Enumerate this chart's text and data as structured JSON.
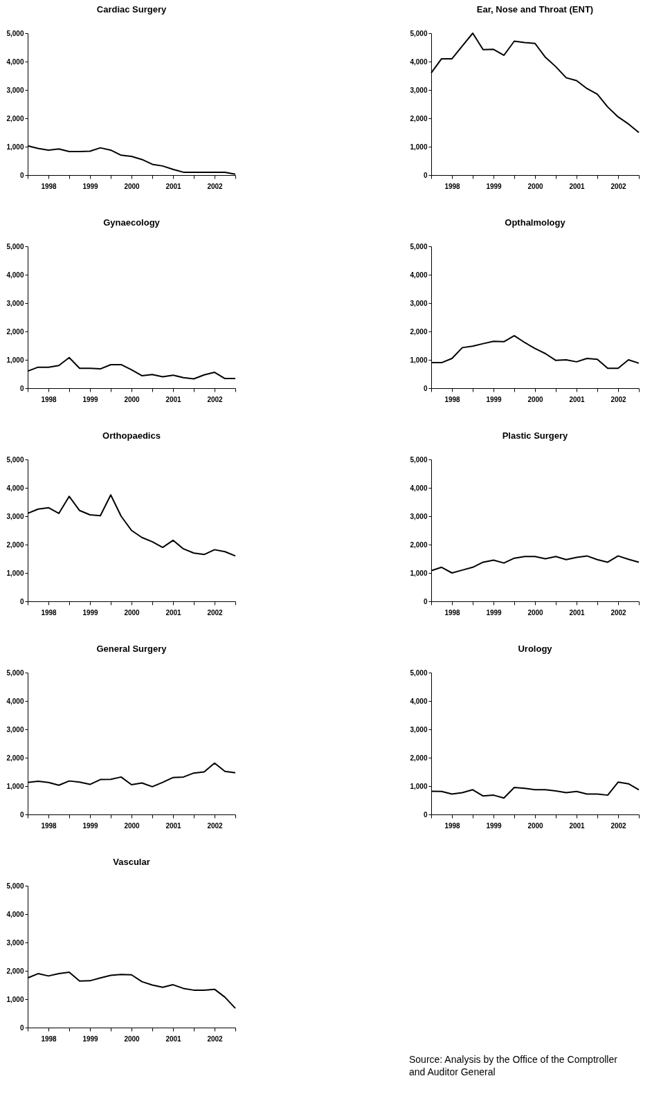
{
  "chart_data": [
    {
      "type": "line",
      "title": "Cardiac Surgery",
      "x": [
        1998,
        1998.25,
        1998.5,
        1998.75,
        1999,
        1999.25,
        1999.5,
        1999.75,
        2000,
        2000.25,
        2000.5,
        2000.75,
        2001,
        2001.25,
        2001.5,
        2001.75,
        2002,
        2002.25,
        2002.5,
        2002.75,
        2003
      ],
      "values": [
        1030,
        940,
        880,
        920,
        830,
        830,
        840,
        960,
        880,
        700,
        660,
        550,
        380,
        320,
        200,
        100,
        100,
        100,
        100,
        100,
        30
      ],
      "color": "#000000",
      "xlim": [
        1998,
        2003
      ],
      "xticks": [
        {
          "value": 1998,
          "label": null
        },
        {
          "value": 1998.5,
          "label": "1998"
        },
        {
          "value": 1999,
          "label": null
        },
        {
          "value": 1999.5,
          "label": "1999"
        },
        {
          "value": 2000,
          "label": null
        },
        {
          "value": 2000.5,
          "label": "2000"
        },
        {
          "value": 2001,
          "label": null
        },
        {
          "value": 2001.5,
          "label": "2001"
        },
        {
          "value": 2002,
          "label": null
        },
        {
          "value": 2002.5,
          "label": "2002"
        },
        {
          "value": 2003,
          "label": null
        }
      ],
      "ylim": [
        0,
        5000
      ],
      "yticks": [
        0,
        {
          "value": 1000,
          "label": "1,000"
        },
        {
          "value": 2000,
          "label": "2,000"
        },
        {
          "value": 3000,
          "label": "3,000"
        },
        {
          "value": 4000,
          "label": "4,000"
        },
        {
          "value": 5000,
          "label": "5,000"
        }
      ],
      "grid": false,
      "marker": "none",
      "line_style": "solid"
    },
    {
      "type": "line",
      "title": "Ear, Nose and Throat (ENT)",
      "x": [
        1998,
        1998.25,
        1998.5,
        1998.75,
        1999,
        1999.25,
        1999.5,
        1999.75,
        2000,
        2000.25,
        2000.5,
        2000.75,
        2001,
        2001.25,
        2001.5,
        2001.75,
        2002,
        2002.25,
        2002.5,
        2002.75,
        2003
      ],
      "values": [
        3600,
        4100,
        4100,
        4550,
        5000,
        4420,
        4430,
        4220,
        4720,
        4670,
        4640,
        4150,
        3820,
        3430,
        3330,
        3050,
        2850,
        2400,
        2050,
        1800,
        1500
      ],
      "color": "#000000",
      "xlim": [
        1998,
        2003
      ],
      "xticks": [
        {
          "value": 1998,
          "label": null
        },
        {
          "value": 1998.5,
          "label": "1998"
        },
        {
          "value": 1999,
          "label": null
        },
        {
          "value": 1999.5,
          "label": "1999"
        },
        {
          "value": 2000,
          "label": null
        },
        {
          "value": 2000.5,
          "label": "2000"
        },
        {
          "value": 2001,
          "label": null
        },
        {
          "value": 2001.5,
          "label": "2001"
        },
        {
          "value": 2002,
          "label": null
        },
        {
          "value": 2002.5,
          "label": "2002"
        },
        {
          "value": 2003,
          "label": null
        }
      ],
      "ylim": [
        0,
        5000
      ],
      "yticks": [
        0,
        {
          "value": 1000,
          "label": "1,000"
        },
        {
          "value": 2000,
          "label": "2,000"
        },
        {
          "value": 3000,
          "label": "3,000"
        },
        {
          "value": 4000,
          "label": "4,000"
        },
        {
          "value": 5000,
          "label": "5,000"
        }
      ],
      "grid": false,
      "marker": "none",
      "line_style": "solid"
    },
    {
      "type": "line",
      "title": "Gynaecology",
      "x": [
        1998,
        1998.25,
        1998.5,
        1998.75,
        1999,
        1999.25,
        1999.5,
        1999.75,
        2000,
        2000.25,
        2000.5,
        2000.75,
        2001,
        2001.25,
        2001.5,
        2001.75,
        2002,
        2002.25,
        2002.5,
        2002.75,
        2003
      ],
      "values": [
        600,
        740,
        740,
        800,
        1080,
        700,
        700,
        680,
        830,
        830,
        650,
        440,
        480,
        400,
        460,
        370,
        330,
        470,
        560,
        340,
        340
      ],
      "color": "#000000",
      "xlim": [
        1998,
        2003
      ],
      "xticks": [
        {
          "value": 1998,
          "label": null
        },
        {
          "value": 1998.5,
          "label": "1998"
        },
        {
          "value": 1999,
          "label": null
        },
        {
          "value": 1999.5,
          "label": "1999"
        },
        {
          "value": 2000,
          "label": null
        },
        {
          "value": 2000.5,
          "label": "2000"
        },
        {
          "value": 2001,
          "label": null
        },
        {
          "value": 2001.5,
          "label": "2001"
        },
        {
          "value": 2002,
          "label": null
        },
        {
          "value": 2002.5,
          "label": "2002"
        },
        {
          "value": 2003,
          "label": null
        }
      ],
      "ylim": [
        0,
        5000
      ],
      "yticks": [
        0,
        {
          "value": 1000,
          "label": "1,000"
        },
        {
          "value": 2000,
          "label": "2,000"
        },
        {
          "value": 3000,
          "label": "3,000"
        },
        {
          "value": 4000,
          "label": "4,000"
        },
        {
          "value": 5000,
          "label": "5,000"
        }
      ],
      "grid": false,
      "marker": "none",
      "line_style": "solid"
    },
    {
      "type": "line",
      "title": "Opthalmology",
      "x": [
        1998,
        1998.25,
        1998.5,
        1998.75,
        1999,
        1999.25,
        1999.5,
        1999.75,
        2000,
        2000.25,
        2000.5,
        2000.75,
        2001,
        2001.25,
        2001.5,
        2001.75,
        2002,
        2002.25,
        2002.5,
        2002.75,
        2003
      ],
      "values": [
        900,
        900,
        1050,
        1430,
        1480,
        1570,
        1650,
        1640,
        1850,
        1610,
        1400,
        1220,
        980,
        1000,
        930,
        1050,
        1020,
        700,
        700,
        1000,
        880
      ],
      "color": "#000000",
      "xlim": [
        1998,
        2003
      ],
      "xticks": [
        {
          "value": 1998,
          "label": null
        },
        {
          "value": 1998.5,
          "label": "1998"
        },
        {
          "value": 1999,
          "label": null
        },
        {
          "value": 1999.5,
          "label": "1999"
        },
        {
          "value": 2000,
          "label": null
        },
        {
          "value": 2000.5,
          "label": "2000"
        },
        {
          "value": 2001,
          "label": null
        },
        {
          "value": 2001.5,
          "label": "2001"
        },
        {
          "value": 2002,
          "label": null
        },
        {
          "value": 2002.5,
          "label": "2002"
        },
        {
          "value": 2003,
          "label": null
        }
      ],
      "ylim": [
        0,
        5000
      ],
      "yticks": [
        0,
        {
          "value": 1000,
          "label": "1,000"
        },
        {
          "value": 2000,
          "label": "2,000"
        },
        {
          "value": 3000,
          "label": "3,000"
        },
        {
          "value": 4000,
          "label": "4,000"
        },
        {
          "value": 5000,
          "label": "5,000"
        }
      ],
      "grid": false,
      "marker": "none",
      "line_style": "solid"
    },
    {
      "type": "line",
      "title": "Orthopaedics",
      "x": [
        1998,
        1998.25,
        1998.5,
        1998.75,
        1999,
        1999.25,
        1999.5,
        1999.75,
        2000,
        2000.25,
        2000.5,
        2000.75,
        2001,
        2001.25,
        2001.5,
        2001.75,
        2002,
        2002.25,
        2002.5,
        2002.75,
        2003
      ],
      "values": [
        3100,
        3250,
        3300,
        3100,
        3700,
        3200,
        3050,
        3020,
        3750,
        3000,
        2500,
        2250,
        2100,
        1900,
        2150,
        1850,
        1700,
        1650,
        1820,
        1750,
        1600
      ],
      "color": "#000000",
      "xlim": [
        1998,
        2003
      ],
      "xticks": [
        {
          "value": 1998,
          "label": null
        },
        {
          "value": 1998.5,
          "label": "1998"
        },
        {
          "value": 1999,
          "label": null
        },
        {
          "value": 1999.5,
          "label": "1999"
        },
        {
          "value": 2000,
          "label": null
        },
        {
          "value": 2000.5,
          "label": "2000"
        },
        {
          "value": 2001,
          "label": null
        },
        {
          "value": 2001.5,
          "label": "2001"
        },
        {
          "value": 2002,
          "label": null
        },
        {
          "value": 2002.5,
          "label": "2002"
        },
        {
          "value": 2003,
          "label": null
        }
      ],
      "ylim": [
        0,
        5000
      ],
      "yticks": [
        0,
        {
          "value": 1000,
          "label": "1,000"
        },
        {
          "value": 2000,
          "label": "2,000"
        },
        {
          "value": 3000,
          "label": "3,000"
        },
        {
          "value": 4000,
          "label": "4,000"
        },
        {
          "value": 5000,
          "label": "5,000"
        }
      ],
      "grid": false,
      "marker": "none",
      "line_style": "solid"
    },
    {
      "type": "line",
      "title": "Plastic Surgery",
      "x": [
        1998,
        1998.25,
        1998.5,
        1998.75,
        1999,
        1999.25,
        1999.5,
        1999.75,
        2000,
        2000.25,
        2000.5,
        2000.75,
        2001,
        2001.25,
        2001.5,
        2001.75,
        2002,
        2002.25,
        2002.5,
        2002.75,
        2003
      ],
      "values": [
        1080,
        1200,
        1000,
        1100,
        1200,
        1380,
        1450,
        1350,
        1520,
        1580,
        1580,
        1500,
        1580,
        1470,
        1550,
        1600,
        1470,
        1380,
        1600,
        1480,
        1380
      ],
      "color": "#000000",
      "xlim": [
        1998,
        2003
      ],
      "xticks": [
        {
          "value": 1998,
          "label": null
        },
        {
          "value": 1998.5,
          "label": "1998"
        },
        {
          "value": 1999,
          "label": null
        },
        {
          "value": 1999.5,
          "label": "1999"
        },
        {
          "value": 2000,
          "label": null
        },
        {
          "value": 2000.5,
          "label": "2000"
        },
        {
          "value": 2001,
          "label": null
        },
        {
          "value": 2001.5,
          "label": "2001"
        },
        {
          "value": 2002,
          "label": null
        },
        {
          "value": 2002.5,
          "label": "2002"
        },
        {
          "value": 2003,
          "label": null
        }
      ],
      "ylim": [
        0,
        5000
      ],
      "yticks": [
        0,
        {
          "value": 1000,
          "label": "1,000"
        },
        {
          "value": 2000,
          "label": "2,000"
        },
        {
          "value": 3000,
          "label": "3,000"
        },
        {
          "value": 4000,
          "label": "4,000"
        },
        {
          "value": 5000,
          "label": "5,000"
        }
      ],
      "grid": false,
      "marker": "none",
      "line_style": "solid"
    },
    {
      "type": "line",
      "title": "General Surgery",
      "x": [
        1998,
        1998.25,
        1998.5,
        1998.75,
        1999,
        1999.25,
        1999.5,
        1999.75,
        2000,
        2000.25,
        2000.5,
        2000.75,
        2001,
        2001.25,
        2001.5,
        2001.75,
        2002,
        2002.25,
        2002.5,
        2002.75,
        2003
      ],
      "values": [
        1130,
        1170,
        1130,
        1030,
        1180,
        1140,
        1060,
        1230,
        1240,
        1320,
        1050,
        1110,
        980,
        1130,
        1300,
        1320,
        1460,
        1500,
        1810,
        1520,
        1470
      ],
      "color": "#000000",
      "xlim": [
        1998,
        2003
      ],
      "xticks": [
        {
          "value": 1998,
          "label": null
        },
        {
          "value": 1998.5,
          "label": "1998"
        },
        {
          "value": 1999,
          "label": null
        },
        {
          "value": 1999.5,
          "label": "1999"
        },
        {
          "value": 2000,
          "label": null
        },
        {
          "value": 2000.5,
          "label": "2000"
        },
        {
          "value": 2001,
          "label": null
        },
        {
          "value": 2001.5,
          "label": "2001"
        },
        {
          "value": 2002,
          "label": null
        },
        {
          "value": 2002.5,
          "label": "2002"
        },
        {
          "value": 2003,
          "label": null
        }
      ],
      "ylim": [
        0,
        5000
      ],
      "yticks": [
        0,
        {
          "value": 1000,
          "label": "1,000"
        },
        {
          "value": 2000,
          "label": "2,000"
        },
        {
          "value": 3000,
          "label": "3,000"
        },
        {
          "value": 4000,
          "label": "4,000"
        },
        {
          "value": 5000,
          "label": "5,000"
        }
      ],
      "grid": false,
      "marker": "none",
      "line_style": "solid"
    },
    {
      "type": "line",
      "title": "Urology",
      "x": [
        1998,
        1998.25,
        1998.5,
        1998.75,
        1999,
        1999.25,
        1999.5,
        1999.75,
        2000,
        2000.25,
        2000.5,
        2000.75,
        2001,
        2001.25,
        2001.5,
        2001.75,
        2002,
        2002.25,
        2002.5,
        2002.75,
        2003
      ],
      "values": [
        820,
        810,
        720,
        770,
        870,
        650,
        680,
        580,
        950,
        920,
        870,
        870,
        830,
        770,
        810,
        720,
        720,
        680,
        1140,
        1080,
        870
      ],
      "color": "#000000",
      "xlim": [
        1998,
        2003
      ],
      "xticks": [
        {
          "value": 1998,
          "label": null
        },
        {
          "value": 1998.5,
          "label": "1998"
        },
        {
          "value": 1999,
          "label": null
        },
        {
          "value": 1999.5,
          "label": "1999"
        },
        {
          "value": 2000,
          "label": null
        },
        {
          "value": 2000.5,
          "label": "2000"
        },
        {
          "value": 2001,
          "label": null
        },
        {
          "value": 2001.5,
          "label": "2001"
        },
        {
          "value": 2002,
          "label": null
        },
        {
          "value": 2002.5,
          "label": "2002"
        },
        {
          "value": 2003,
          "label": null
        }
      ],
      "ylim": [
        0,
        5000
      ],
      "yticks": [
        0,
        {
          "value": 1000,
          "label": "1,000"
        },
        {
          "value": 2000,
          "label": "2,000"
        },
        {
          "value": 3000,
          "label": "3,000"
        },
        {
          "value": 4000,
          "label": "4,000"
        },
        {
          "value": 5000,
          "label": "5,000"
        }
      ],
      "grid": false,
      "marker": "none",
      "line_style": "solid"
    },
    {
      "type": "line",
      "title": "Vascular",
      "x": [
        1998,
        1998.25,
        1998.5,
        1998.75,
        1999,
        1999.25,
        1999.5,
        1999.75,
        2000,
        2000.25,
        2000.5,
        2000.75,
        2001,
        2001.25,
        2001.5,
        2001.75,
        2002,
        2002.25,
        2002.5,
        2002.75,
        2003
      ],
      "values": [
        1750,
        1900,
        1820,
        1900,
        1950,
        1640,
        1650,
        1750,
        1840,
        1870,
        1860,
        1620,
        1500,
        1420,
        1510,
        1380,
        1320,
        1320,
        1350,
        1070,
        680
      ],
      "color": "#000000",
      "xlim": [
        1998,
        2003
      ],
      "xticks": [
        {
          "value": 1998,
          "label": null
        },
        {
          "value": 1998.5,
          "label": "1998"
        },
        {
          "value": 1999,
          "label": null
        },
        {
          "value": 1999.5,
          "label": "1999"
        },
        {
          "value": 2000,
          "label": null
        },
        {
          "value": 2000.5,
          "label": "2000"
        },
        {
          "value": 2001,
          "label": null
        },
        {
          "value": 2001.5,
          "label": "2001"
        },
        {
          "value": 2002,
          "label": null
        },
        {
          "value": 2002.5,
          "label": "2002"
        },
        {
          "value": 2003,
          "label": null
        }
      ],
      "ylim": [
        0,
        5000
      ],
      "yticks": [
        0,
        {
          "value": 1000,
          "label": "1,000"
        },
        {
          "value": 2000,
          "label": "2,000"
        },
        {
          "value": 3000,
          "label": "3,000"
        },
        {
          "value": 4000,
          "label": "4,000"
        },
        {
          "value": 5000,
          "label": "5,000"
        }
      ],
      "grid": false,
      "marker": "none",
      "line_style": "solid",
      "annotations": [
        "Source: Analysis by the Office of the Comptroller\nand Auditor General"
      ]
    }
  ]
}
